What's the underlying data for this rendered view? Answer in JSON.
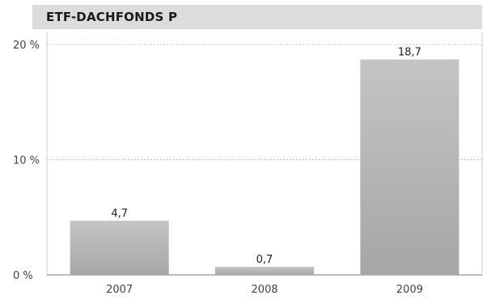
{
  "chart_data": {
    "type": "bar",
    "title": "ETF-DACHFONDS P",
    "categories": [
      "2007",
      "2008",
      "2009"
    ],
    "values": [
      4.7,
      0.7,
      18.7
    ],
    "data_labels": [
      "4,7",
      "0,7",
      "18,7"
    ],
    "y_ticks": [
      0,
      10,
      20
    ],
    "y_tick_labels": [
      "0 %",
      "10 %",
      "20 %"
    ],
    "ylim": [
      0,
      20
    ],
    "xlabel": "",
    "ylabel": "",
    "grid": true,
    "legend": "none",
    "colors": {
      "bar_top": "#c4c4c4",
      "bar_bottom": "#a6a6a6",
      "title_background": "#dcdcdc",
      "grid": "#bdbdbd",
      "border": "#cfcfcf"
    }
  }
}
